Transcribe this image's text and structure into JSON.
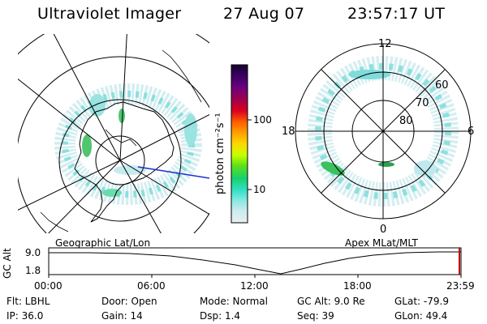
{
  "header": {
    "instrument": "Ultraviolet Imager",
    "date": "27 Aug 07",
    "time": "23:57:17 UT"
  },
  "left_panel": {
    "caption": "Geographic Lat/Lon"
  },
  "right_panel": {
    "caption": "Apex MLat/MLT",
    "lat_labels": [
      "60",
      "70",
      "80"
    ],
    "mlt_labels": {
      "top": "12",
      "bottom": "0",
      "left": "18",
      "right": "6"
    }
  },
  "colorbar": {
    "unit": "photon cm⁻²s⁻¹",
    "tick_labels": [
      "100",
      "10"
    ],
    "colors": [
      "#1a0033",
      "#3a0060",
      "#6a0080",
      "#a0004a",
      "#d80020",
      "#ff5a00",
      "#ffa000",
      "#ffd700",
      "#c8ff00",
      "#5ce01a",
      "#18d070",
      "#30e0c0",
      "#8ae8e4",
      "#cfecee",
      "#e8eef2"
    ]
  },
  "timeline": {
    "y_axis_title": "GC Alt",
    "y_ticks": [
      "9.0",
      "1.8"
    ],
    "x_ticks": [
      "00:00",
      "06:00",
      "12:00",
      "18:00",
      "23:59"
    ],
    "marker_color": "#c00000"
  },
  "info": {
    "flt": "Flt: LBHL",
    "ip": "IP: 36.0",
    "door": "Door: Open",
    "gain": "Gain: 14",
    "mode": "Mode: Normal",
    "dsp": "Dsp:    1.4",
    "gcalt": "GC Alt: 9.0 Re",
    "seq": "Seq: 39",
    "glat": "GLat: -79.9",
    "glon": "GLon:  49.4"
  },
  "colors": {
    "aurora": "#5fd8d8",
    "aurora_light": "#bfe9ee",
    "aurora_green": "#3cc060",
    "track": "#1a2ecc"
  }
}
